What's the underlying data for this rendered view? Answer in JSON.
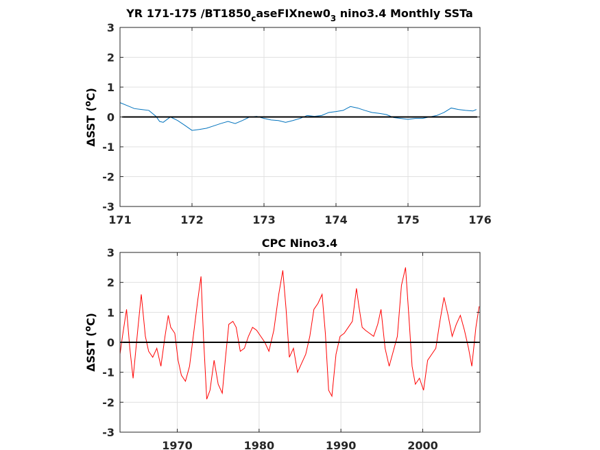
{
  "chart_data": [
    {
      "type": "line",
      "title_parts": {
        "a": "YR 171-175 /BT1850",
        "b": "c",
        "c": "aseFIXnew0",
        "d": "3",
        "e": " nino3.4 Monthly SSTa"
      },
      "ylabel_parts": {
        "a": "ΔSST (",
        "b": "o",
        "c": "C)"
      },
      "xlim": [
        171,
        176
      ],
      "ylim": [
        -3,
        3
      ],
      "xticks": [
        "171",
        "172",
        "173",
        "174",
        "175",
        "176"
      ],
      "yticks": [
        "-3",
        "-2",
        "-1",
        "0",
        "1",
        "2",
        "3"
      ],
      "grid": true,
      "zero_line": true,
      "series": [
        {
          "color": "#0072BD",
          "x": [
            171.0,
            171.1,
            171.2,
            171.3,
            171.4,
            171.5,
            171.55,
            171.6,
            171.7,
            171.8,
            171.9,
            172.0,
            172.1,
            172.2,
            172.3,
            172.4,
            172.5,
            172.6,
            172.7,
            172.8,
            172.9,
            173.0,
            173.1,
            173.2,
            173.3,
            173.4,
            173.5,
            173.6,
            173.7,
            173.8,
            173.9,
            174.0,
            174.1,
            174.2,
            174.3,
            174.4,
            174.5,
            174.6,
            174.7,
            174.8,
            174.9,
            175.0,
            175.1,
            175.2,
            175.3,
            175.4,
            175.5,
            175.6,
            175.7,
            175.8,
            175.9,
            175.95
          ],
          "y": [
            0.48,
            0.38,
            0.28,
            0.25,
            0.22,
            0.02,
            -0.15,
            -0.18,
            0.0,
            -0.12,
            -0.28,
            -0.45,
            -0.42,
            -0.38,
            -0.3,
            -0.22,
            -0.15,
            -0.22,
            -0.12,
            0.0,
            0.02,
            -0.05,
            -0.1,
            -0.12,
            -0.18,
            -0.12,
            -0.05,
            0.05,
            0.02,
            0.05,
            0.15,
            0.18,
            0.22,
            0.35,
            0.3,
            0.22,
            0.15,
            0.12,
            0.08,
            -0.02,
            -0.05,
            -0.08,
            -0.05,
            -0.05,
            0.0,
            0.05,
            0.15,
            0.3,
            0.25,
            0.22,
            0.2,
            0.25
          ]
        }
      ]
    },
    {
      "type": "line",
      "title": "CPC Nino3.4",
      "ylabel_parts": {
        "a": "ΔSST (",
        "b": "o",
        "c": "C)"
      },
      "xlim": [
        1963,
        2007
      ],
      "ylim": [
        -3,
        3
      ],
      "xticks": [
        "1970",
        "1980",
        "1990",
        "2000"
      ],
      "xtick_values": [
        1970,
        1980,
        1990,
        2000
      ],
      "yticks": [
        "-3",
        "-2",
        "-1",
        "0",
        "1",
        "2",
        "3"
      ],
      "grid": true,
      "zero_line": true,
      "series": [
        {
          "color": "#FF0000",
          "x": [
            1963.0,
            1963.3,
            1963.8,
            1964.2,
            1964.6,
            1965.2,
            1965.6,
            1966.1,
            1966.5,
            1967.0,
            1967.5,
            1968.0,
            1968.5,
            1968.9,
            1969.2,
            1969.7,
            1970.1,
            1970.5,
            1971.0,
            1971.5,
            1972.0,
            1972.5,
            1972.9,
            1973.2,
            1973.6,
            1974.0,
            1974.5,
            1975.0,
            1975.5,
            1975.9,
            1976.3,
            1976.8,
            1977.2,
            1977.7,
            1978.2,
            1978.7,
            1979.2,
            1979.7,
            1980.2,
            1980.7,
            1981.2,
            1981.8,
            1982.4,
            1982.9,
            1983.3,
            1983.7,
            1984.2,
            1984.7,
            1985.2,
            1985.7,
            1986.2,
            1986.7,
            1987.2,
            1987.7,
            1988.1,
            1988.5,
            1988.9,
            1989.4,
            1989.9,
            1990.4,
            1990.9,
            1991.4,
            1991.9,
            1992.2,
            1992.6,
            1993.0,
            1993.5,
            1994.0,
            1994.5,
            1994.9,
            1995.4,
            1995.9,
            1996.4,
            1996.9,
            1997.4,
            1997.9,
            1998.3,
            1998.7,
            1999.1,
            1999.6,
            2000.1,
            2000.6,
            2001.1,
            2001.6,
            2002.1,
            2002.6,
            2003.1,
            2003.6,
            2004.1,
            2004.6,
            2005.1,
            2005.6,
            2006.0,
            2006.5,
            2006.9
          ],
          "y": [
            -0.4,
            0.2,
            1.1,
            -0.2,
            -1.2,
            0.5,
            1.6,
            0.2,
            -0.3,
            -0.5,
            -0.2,
            -0.8,
            0.2,
            0.9,
            0.5,
            0.3,
            -0.6,
            -1.1,
            -1.3,
            -0.8,
            0.3,
            1.4,
            2.2,
            0.2,
            -1.9,
            -1.6,
            -0.6,
            -1.4,
            -1.7,
            -0.5,
            0.6,
            0.7,
            0.5,
            -0.3,
            -0.2,
            0.2,
            0.5,
            0.4,
            0.2,
            0.0,
            -0.3,
            0.4,
            1.6,
            2.4,
            1.1,
            -0.5,
            -0.2,
            -1.0,
            -0.7,
            -0.4,
            0.2,
            1.1,
            1.3,
            1.6,
            0.3,
            -1.6,
            -1.8,
            -0.4,
            0.2,
            0.3,
            0.5,
            0.7,
            1.8,
            1.2,
            0.5,
            0.4,
            0.3,
            0.2,
            0.6,
            1.1,
            -0.2,
            -0.8,
            -0.3,
            0.2,
            1.9,
            2.5,
            0.9,
            -0.8,
            -1.4,
            -1.2,
            -1.6,
            -0.6,
            -0.4,
            -0.2,
            0.7,
            1.5,
            0.9,
            0.2,
            0.6,
            0.9,
            0.4,
            -0.2,
            -0.8,
            0.5,
            1.2
          ]
        }
      ]
    }
  ]
}
